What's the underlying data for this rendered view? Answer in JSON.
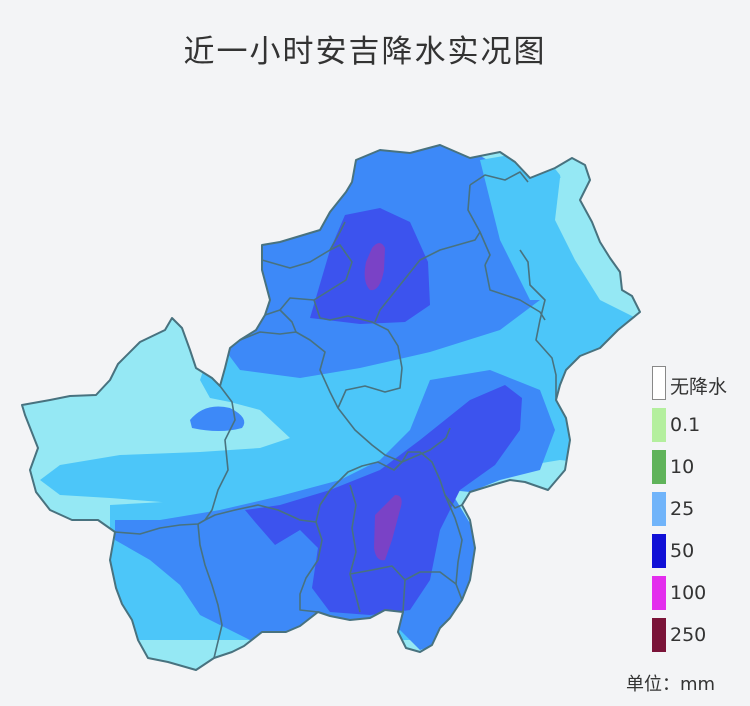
{
  "title": "近一小时安吉降水实况图",
  "legend": [
    {
      "label": "无降水",
      "color": "#ffffff",
      "border": "#888888"
    },
    {
      "label": "0.1",
      "color": "#b4ef9e"
    },
    {
      "label": "10",
      "color": "#5fb35a"
    },
    {
      "label": "25",
      "color": "#70b4fa"
    },
    {
      "label": "50",
      "color": "#1010d6"
    },
    {
      "label": "100",
      "color": "#e32ded"
    },
    {
      "label": "250",
      "color": "#7a1338"
    }
  ],
  "unit_label": "单位：mm",
  "map_colors": {
    "light": "#95e8f4",
    "sky": "#4cc6f9",
    "mid": "#3d89f8",
    "dark": "#3c53ee",
    "peak": "#7a42c6",
    "border": "#48727f"
  }
}
